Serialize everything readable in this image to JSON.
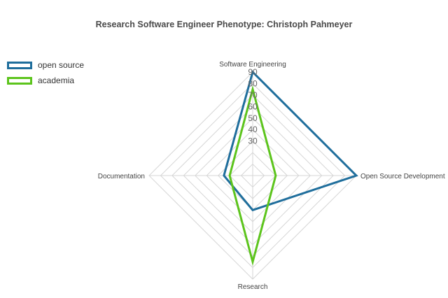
{
  "chart_data": {
    "type": "radar",
    "title": "Research Software Engineer Phenotype: Christoph Pahmeyer",
    "axes": [
      "Software Engineering",
      "Open Source Development",
      "Research",
      "Documentation"
    ],
    "range": [
      0,
      90
    ],
    "ticks": [
      30,
      40,
      50,
      60,
      70,
      80,
      90
    ],
    "grid": true,
    "legend_position": "top-left",
    "series": [
      {
        "name": "open source",
        "color": "#1f6e9c",
        "values": [
          90,
          90,
          30,
          25
        ]
      },
      {
        "name": "academia",
        "color": "#5cc41c",
        "values": [
          75,
          20,
          75,
          20
        ]
      }
    ]
  }
}
